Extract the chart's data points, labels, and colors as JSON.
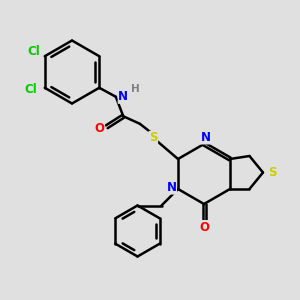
{
  "bg_color": "#e0e0e0",
  "line_color": "#000000",
  "line_width": 1.8,
  "figsize": [
    3.0,
    3.0
  ],
  "dpi": 100,
  "xlim": [
    0.0,
    10.0
  ],
  "ylim": [
    0.0,
    10.0
  ],
  "cl_color": "#00cc00",
  "n_color": "#0000ff",
  "o_color": "#ff0000",
  "s_color": "#cccc00",
  "h_color": "#808080",
  "font_size": 8.5
}
